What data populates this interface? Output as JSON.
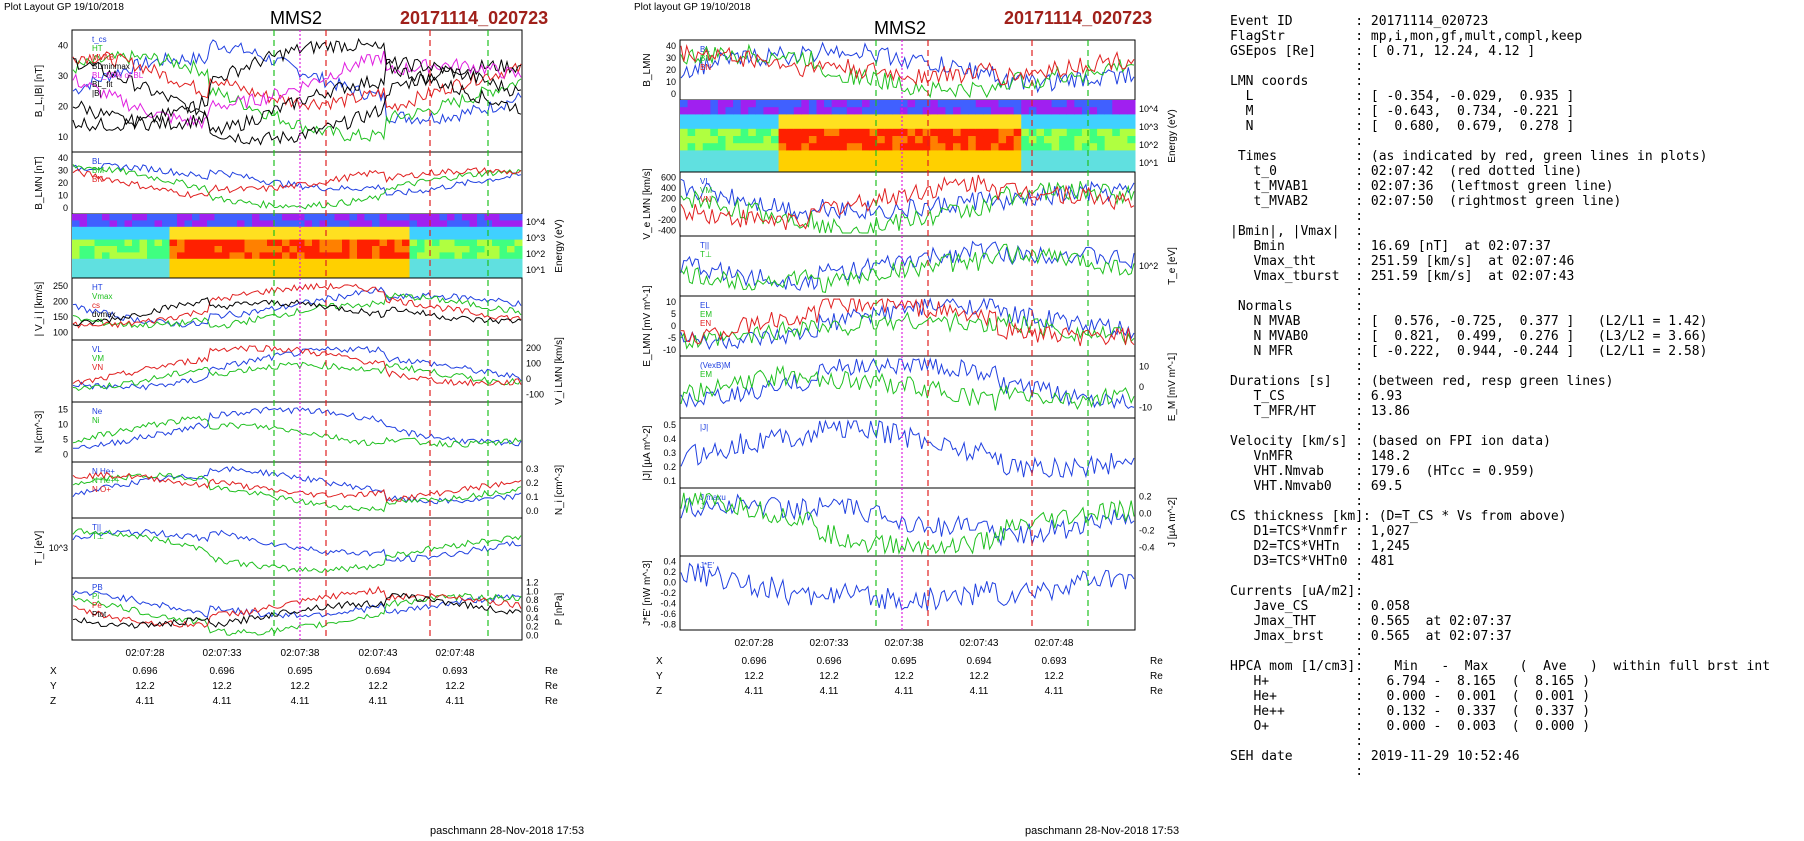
{
  "left_header": {
    "plot_label": "Plot Layout GP 19/10/2018",
    "spacecraft": "MMS2",
    "event": "20171114_020723"
  },
  "mid_header": {
    "plot_label": "Plot layout GP 19/10/2018",
    "spacecraft": "MMS2",
    "event": "20171114_020723"
  },
  "footer_left": "paschmann 28-Nov-2018 17:53",
  "footer_mid": "paschmann 28-Nov-2018 17:53",
  "time_ticks": [
    "02:07:28",
    "02:07:33",
    "02:07:38",
    "02:07:43",
    "02:07:48"
  ],
  "position_rows": [
    {
      "label": "X",
      "values": [
        "0.696",
        "0.696",
        "0.695",
        "0.694",
        "0.693"
      ],
      "unit": "Re"
    },
    {
      "label": "Y",
      "values": [
        "12.2",
        "12.2",
        "12.2",
        "12.2",
        "12.2"
      ],
      "unit": "Re"
    },
    {
      "label": "Z",
      "values": [
        "4.11",
        "4.11",
        "4.11",
        "4.11",
        "4.11"
      ],
      "unit": "Re"
    }
  ],
  "colors": {
    "event_title": "#a0201a",
    "red": "#e02020",
    "green": "#20c020",
    "blue": "#2040e0",
    "magenta": "#e020e0",
    "black": "#000000"
  },
  "chart_data": [
    {
      "type": "line",
      "title": "MMS2",
      "panels": [
        {
          "ylabel": "B_L,|B| [nT]",
          "yticks": [
            "10",
            "20",
            "30",
            "40"
          ],
          "legend": [
            "t_cs",
            "HT",
            "MVAB",
            "BLminmax",
            "BL_50% of BL",
            "BL_fit",
            "|B|"
          ]
        },
        {
          "ylabel": "B_LMN [nT]",
          "yticks": [
            "0",
            "10",
            "20",
            "30",
            "40"
          ],
          "legend": [
            "BL",
            "BM",
            "BN"
          ]
        },
        {
          "ylabel": "Energy (eV)",
          "yticks": [
            "10^1",
            "10^2",
            "10^3",
            "10^4"
          ],
          "type": "heatmap"
        },
        {
          "ylabel": "| V_i | [km/s]",
          "yticks": [
            "100",
            "150",
            "200",
            "250"
          ],
          "legend": [
            "HT",
            "Vmax",
            "cs",
            "dvmax"
          ]
        },
        {
          "ylabel": "V_i LMN [km/s]",
          "yticks": [
            "-100",
            "0",
            "100",
            "200"
          ],
          "legend": [
            "VL",
            "VM",
            "VN"
          ]
        },
        {
          "ylabel": "N [cm^-3]",
          "yticks": [
            "0",
            "5",
            "10",
            "15"
          ],
          "legend": [
            "Ne",
            "Ni"
          ]
        },
        {
          "ylabel": "N_i [cm^-3]",
          "yticks": [
            "0.0",
            "0.1",
            "0.2",
            "0.3"
          ],
          "legend": [
            "N He+",
            "N He++",
            "N O+"
          ]
        },
        {
          "ylabel": "T_i [eV]",
          "yticks": [
            "10^3"
          ],
          "legend": [
            "T||",
            "T⊥"
          ]
        },
        {
          "ylabel": "P [nPa]",
          "yticks": [
            "0.0",
            "0.2",
            "0.4",
            "0.6",
            "0.8",
            "1.0",
            "1.2"
          ],
          "legend": [
            "PB",
            "Pi",
            "Pe",
            "Ptot"
          ]
        }
      ]
    },
    {
      "type": "line",
      "title": "MMS2",
      "panels": [
        {
          "ylabel": "B_LMN",
          "yticks": [
            "0",
            "10",
            "20",
            "30",
            "40"
          ],
          "legend": [
            "BL",
            "BM",
            "BN"
          ]
        },
        {
          "ylabel": "Energy (eV)",
          "yticks": [
            "10^1",
            "10^2",
            "10^3",
            "10^4"
          ],
          "type": "heatmap"
        },
        {
          "ylabel": "V_e LMN [km/s]",
          "yticks": [
            "-400",
            "-200",
            "0",
            "200",
            "400",
            "600"
          ],
          "legend": [
            "VL",
            "VM",
            "VN"
          ]
        },
        {
          "ylabel": "T_e [eV]",
          "yticks": [
            "10^2"
          ],
          "legend": [
            "T||",
            "T⊥"
          ]
        },
        {
          "ylabel": "E_LMN [mV m^-1]",
          "yticks": [
            "-10",
            "-5",
            "0",
            "5",
            "10"
          ],
          "legend": [
            "EL",
            "EM",
            "EN"
          ]
        },
        {
          "ylabel": "E_M [mV m^-1]",
          "yticks": [
            "-10",
            "0",
            "10"
          ],
          "legend": [
            "(VexB)M",
            "EM"
          ]
        },
        {
          "ylabel": "|J| [µA m^-2]",
          "yticks": [
            "0.1",
            "0.2",
            "0.3",
            "0.4",
            "0.5"
          ],
          "legend": [
            "|J|"
          ]
        },
        {
          "ylabel": "J [µA m^-2]",
          "yticks": [
            "-0.4",
            "-0.2",
            "0.0",
            "0.2"
          ],
          "legend": [
            "J maxu",
            "J"
          ]
        },
        {
          "ylabel": "J*E' [nW m^-3]",
          "yticks": [
            "-0.8",
            "-0.6",
            "-0.4",
            "-0.2",
            "0.0",
            "0.2",
            "0.4"
          ],
          "legend": [
            "J*E'"
          ]
        }
      ]
    }
  ],
  "info_lines": [
    "Event ID        : 20171114_020723",
    "FlagStr         : mp,i,mon,gf,mult,compl,keep",
    "GSEpos [Re]     : [ 0.71, 12.24, 4.12 ]",
    "                :",
    "LMN coords      :",
    "  L             : [ -0.354, -0.029,  0.935 ]",
    "  M             : [ -0.643,  0.734, -0.221 ]",
    "  N             : [  0.680,  0.679,  0.278 ]",
    "                :",
    " Times          : (as indicated by red, green lines in plots)",
    "   t_0          : 02:07:42  (red dotted line)",
    "   t_MVAB1      : 02:07:36  (leftmost green line)",
    "   t_MVAB2      : 02:07:50  (rightmost green line)",
    "                :",
    "|Bmin|, |Vmax|  :",
    "   Bmin         : 16.69 [nT]  at 02:07:37",
    "   Vmax_tht     : 251.59 [km/s]  at 02:07:46",
    "   Vmax_tburst  : 251.59 [km/s]  at 02:07:43",
    "                :",
    " Normals        :",
    "   N MVAB       : [  0.576, -0.725,  0.377 ]   (L2/L1 = 1.42)",
    "   N MVAB0      : [  0.821,  0.499,  0.276 ]   (L3/L2 = 3.66)",
    "   N MFR        : [ -0.222,  0.944, -0.244 ]   (L2/L1 = 2.58)",
    "                :",
    "Durations [s]   : (between red, resp green lines)",
    "   T_CS         : 6.93",
    "   T_MFR/HT     : 13.86",
    "                :",
    "Velocity [km/s] : (based on FPI ion data)",
    "   VnMFR        : 148.2",
    "   VHT.Nmvab    : 179.6  (HTcc = 0.959)",
    "   VHT.Nmvab0   : 69.5",
    "                :",
    "CS thickness [km]: (D=T_CS * Vs from above)",
    "   D1=TCS*Vnmfr : 1,027",
    "   D2=TCS*VHTn  : 1,245",
    "   D3=TCS*VHTn0 : 481",
    "                :",
    "Currents [uA/m2]:",
    "   Jave_CS      : 0.058",
    "   Jmax_THT     : 0.565  at 02:07:37",
    "   Jmax_brst    : 0.565  at 02:07:37",
    "                :",
    "HPCA mom [1/cm3]:    Min   -  Max    (  Ave   )  within full brst int",
    "   H+           :   6.794 -  8.165  (  8.165 )",
    "   He+          :   0.000 -  0.001  (  0.001 )",
    "   He++         :   0.132 -  0.337  (  0.337 )",
    "   O+           :   0.000 -  0.003  (  0.000 )",
    "                :",
    "SEH date        : 2019-11-29 10:52:46",
    "                :"
  ]
}
